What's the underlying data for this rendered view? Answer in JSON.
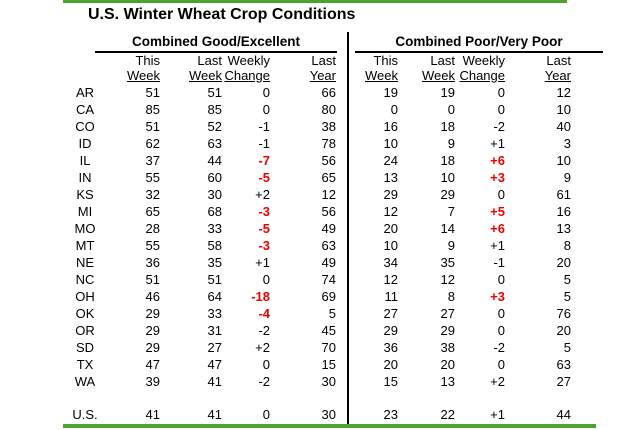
{
  "colors": {
    "accent_green": "#4CA42D",
    "alert_red": "#EE0000"
  },
  "chart_data": {
    "type": "table",
    "title": "U.S. Winter Wheat Crop Conditions",
    "groups": [
      {
        "label": "Combined Good/Excellent"
      },
      {
        "label": "Combined Poor/Very Poor"
      }
    ],
    "subheaders": {
      "this": [
        "This",
        "Week"
      ],
      "last": [
        "Last",
        "Week"
      ],
      "change": [
        "Weekly",
        "Change"
      ],
      "year": [
        "Last",
        "Year"
      ]
    },
    "rows": [
      {
        "state": "AR",
        "ge": {
          "tw": "51",
          "lw": "51",
          "chg": "0",
          "hl": false,
          "ly": "66"
        },
        "pp": {
          "tw": "19",
          "lw": "19",
          "chg": "0",
          "hl": false,
          "ly": "12"
        }
      },
      {
        "state": "CA",
        "ge": {
          "tw": "85",
          "lw": "85",
          "chg": "0",
          "hl": false,
          "ly": "80"
        },
        "pp": {
          "tw": "0",
          "lw": "0",
          "chg": "0",
          "hl": false,
          "ly": "10"
        }
      },
      {
        "state": "CO",
        "ge": {
          "tw": "51",
          "lw": "52",
          "chg": "-1",
          "hl": false,
          "ly": "38"
        },
        "pp": {
          "tw": "16",
          "lw": "18",
          "chg": "-2",
          "hl": false,
          "ly": "40"
        }
      },
      {
        "state": "ID",
        "ge": {
          "tw": "62",
          "lw": "63",
          "chg": "-1",
          "hl": false,
          "ly": "78"
        },
        "pp": {
          "tw": "10",
          "lw": "9",
          "chg": "+1",
          "hl": false,
          "ly": "3"
        }
      },
      {
        "state": "IL",
        "ge": {
          "tw": "37",
          "lw": "44",
          "chg": "-7",
          "hl": true,
          "ly": "56"
        },
        "pp": {
          "tw": "24",
          "lw": "18",
          "chg": "+6",
          "hl": true,
          "ly": "10"
        }
      },
      {
        "state": "IN",
        "ge": {
          "tw": "55",
          "lw": "60",
          "chg": "-5",
          "hl": true,
          "ly": "65"
        },
        "pp": {
          "tw": "13",
          "lw": "10",
          "chg": "+3",
          "hl": true,
          "ly": "9"
        }
      },
      {
        "state": "KS",
        "ge": {
          "tw": "32",
          "lw": "30",
          "chg": "+2",
          "hl": false,
          "ly": "12"
        },
        "pp": {
          "tw": "29",
          "lw": "29",
          "chg": "0",
          "hl": false,
          "ly": "61"
        }
      },
      {
        "state": "MI",
        "ge": {
          "tw": "65",
          "lw": "68",
          "chg": "-3",
          "hl": true,
          "ly": "56"
        },
        "pp": {
          "tw": "12",
          "lw": "7",
          "chg": "+5",
          "hl": true,
          "ly": "16"
        }
      },
      {
        "state": "MO",
        "ge": {
          "tw": "28",
          "lw": "33",
          "chg": "-5",
          "hl": true,
          "ly": "49"
        },
        "pp": {
          "tw": "20",
          "lw": "14",
          "chg": "+6",
          "hl": true,
          "ly": "13"
        }
      },
      {
        "state": "MT",
        "ge": {
          "tw": "55",
          "lw": "58",
          "chg": "-3",
          "hl": true,
          "ly": "63"
        },
        "pp": {
          "tw": "10",
          "lw": "9",
          "chg": "+1",
          "hl": false,
          "ly": "8"
        }
      },
      {
        "state": "NE",
        "ge": {
          "tw": "36",
          "lw": "35",
          "chg": "+1",
          "hl": false,
          "ly": "49"
        },
        "pp": {
          "tw": "34",
          "lw": "35",
          "chg": "-1",
          "hl": false,
          "ly": "20"
        }
      },
      {
        "state": "NC",
        "ge": {
          "tw": "51",
          "lw": "51",
          "chg": "0",
          "hl": false,
          "ly": "74"
        },
        "pp": {
          "tw": "12",
          "lw": "12",
          "chg": "0",
          "hl": false,
          "ly": "5"
        }
      },
      {
        "state": "OH",
        "ge": {
          "tw": "46",
          "lw": "64",
          "chg": "-18",
          "hl": true,
          "ly": "69"
        },
        "pp": {
          "tw": "11",
          "lw": "8",
          "chg": "+3",
          "hl": true,
          "ly": "5"
        }
      },
      {
        "state": "OK",
        "ge": {
          "tw": "29",
          "lw": "33",
          "chg": "-4",
          "hl": true,
          "ly": "5"
        },
        "pp": {
          "tw": "27",
          "lw": "27",
          "chg": "0",
          "hl": false,
          "ly": "76"
        }
      },
      {
        "state": "OR",
        "ge": {
          "tw": "29",
          "lw": "31",
          "chg": "-2",
          "hl": false,
          "ly": "45"
        },
        "pp": {
          "tw": "29",
          "lw": "29",
          "chg": "0",
          "hl": false,
          "ly": "20"
        }
      },
      {
        "state": "SD",
        "ge": {
          "tw": "29",
          "lw": "27",
          "chg": "+2",
          "hl": false,
          "ly": "70"
        },
        "pp": {
          "tw": "36",
          "lw": "38",
          "chg": "-2",
          "hl": false,
          "ly": "5"
        }
      },
      {
        "state": "TX",
        "ge": {
          "tw": "47",
          "lw": "47",
          "chg": "0",
          "hl": false,
          "ly": "15"
        },
        "pp": {
          "tw": "20",
          "lw": "20",
          "chg": "0",
          "hl": false,
          "ly": "63"
        }
      },
      {
        "state": "WA",
        "ge": {
          "tw": "39",
          "lw": "41",
          "chg": "-2",
          "hl": false,
          "ly": "30"
        },
        "pp": {
          "tw": "15",
          "lw": "13",
          "chg": "+2",
          "hl": false,
          "ly": "27"
        }
      }
    ],
    "total": {
      "state": "U.S.",
      "ge": {
        "tw": "41",
        "lw": "41",
        "chg": "0",
        "hl": false,
        "ly": "30"
      },
      "pp": {
        "tw": "23",
        "lw": "22",
        "chg": "+1",
        "hl": false,
        "ly": "44"
      }
    }
  }
}
